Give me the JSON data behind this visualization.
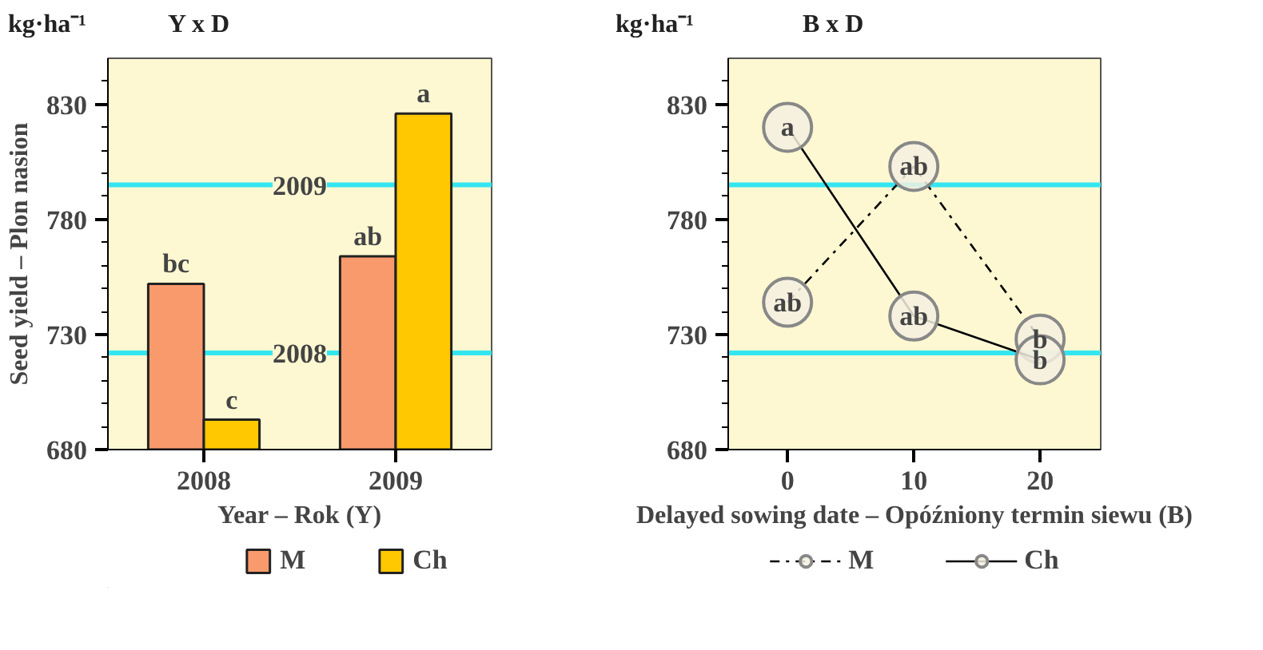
{
  "chart_data": [
    {
      "type": "bar",
      "title": "Y x D",
      "ylabel": "Seed yield – Plon nasion",
      "xlabel": "Year – Rok (Y)",
      "categories": [
        "2008",
        "2009"
      ],
      "series": [
        {
          "name": "M",
          "color": "#f99a6c",
          "values": [
            752,
            764
          ],
          "value_labels": [
            "bc",
            "ab"
          ]
        },
        {
          "name": "Ch",
          "color": "#ffc800",
          "values": [
            693,
            826
          ],
          "value_labels": [
            "c",
            "a"
          ]
        }
      ],
      "ylim": [
        680,
        850
      ],
      "yticks": [
        680,
        {
          "value": 690,
          "label": null
        },
        {
          "value": 700,
          "label": null
        },
        {
          "value": 710,
          "label": null
        },
        {
          "value": 720,
          "label": null
        },
        730,
        {
          "value": 740,
          "label": null
        },
        {
          "value": 750,
          "label": null
        },
        {
          "value": 760,
          "label": null
        },
        {
          "value": 770,
          "label": null
        },
        780,
        {
          "value": 790,
          "label": null
        },
        {
          "value": 800,
          "label": null
        },
        {
          "value": 810,
          "label": null
        },
        {
          "value": 820,
          "label": null
        },
        830,
        {
          "value": 840,
          "label": null
        }
      ],
      "ref_lines": [
        {
          "axis": "y",
          "value": 795,
          "color": "#33e6f0"
        },
        {
          "axis": "y",
          "value": 722,
          "color": "#33e6f0"
        }
      ],
      "annotations": [
        "kg·ha⁻¹",
        {
          "text": "2009",
          "y": 795
        },
        {
          "text": "2008",
          "y": 722
        }
      ],
      "legend": "bottom",
      "grid": false
    },
    {
      "type": "line",
      "xlabel": "Delayed sowing date – Opóźniony termin siewu (B)",
      "title": "B x D",
      "annotations": [
        "kg·ha⁻¹"
      ],
      "x": [
        0,
        10,
        20
      ],
      "series": [
        {
          "name": "M",
          "color": "#000000",
          "values": [
            744,
            803,
            728
          ],
          "value_labels": [
            "ab",
            "ab",
            "b"
          ],
          "line_style": "dashdot"
        },
        {
          "name": "Ch",
          "color": "#000000",
          "values": [
            820,
            738,
            719
          ],
          "value_labels": [
            "a",
            "ab",
            "b"
          ],
          "line_style": "solid"
        }
      ],
      "xlim": [
        -4.7,
        24.8
      ],
      "xticks": [
        0,
        10,
        20
      ],
      "ylim": [
        680,
        850
      ],
      "yticks": [
        680,
        {
          "value": 690,
          "label": null
        },
        {
          "value": 700,
          "label": null
        },
        {
          "value": 710,
          "label": null
        },
        {
          "value": 720,
          "label": null
        },
        730,
        {
          "value": 740,
          "label": null
        },
        {
          "value": 750,
          "label": null
        },
        {
          "value": 760,
          "label": null
        },
        {
          "value": 770,
          "label": null
        },
        780,
        {
          "value": 790,
          "label": null
        },
        {
          "value": 800,
          "label": null
        },
        {
          "value": 810,
          "label": null
        },
        {
          "value": 820,
          "label": null
        },
        830,
        {
          "value": 840,
          "label": null
        }
      ],
      "ref_lines": [
        {
          "axis": "y",
          "value": 795,
          "color": "#33e6f0"
        },
        {
          "axis": "y",
          "value": 722,
          "color": "#33e6f0"
        }
      ],
      "marker": "circle",
      "legend": "bottom",
      "grid": false
    }
  ]
}
